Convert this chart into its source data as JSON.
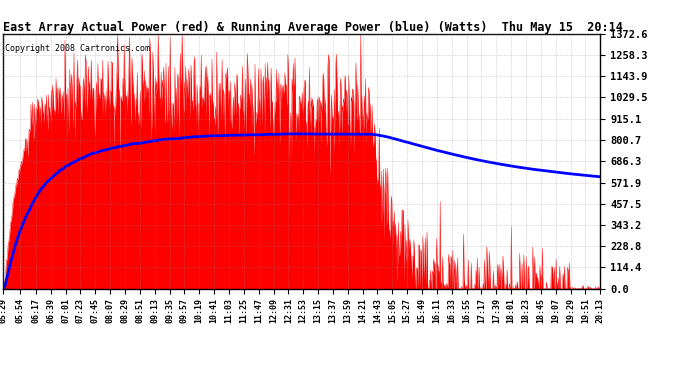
{
  "title": "East Array Actual Power (red) & Running Average Power (blue) (Watts)  Thu May 15  20:14",
  "copyright": "Copyright 2008 Cartronics.com",
  "background_color": "#ffffff",
  "plot_bg_color": "#ffffff",
  "grid_color": "#888888",
  "yticks": [
    0.0,
    114.4,
    228.8,
    343.2,
    457.5,
    571.9,
    686.3,
    800.7,
    915.1,
    1029.5,
    1143.9,
    1258.3,
    1372.6
  ],
  "ymax": 1372.6,
  "ymin": 0.0,
  "x_labels": [
    "05:29",
    "05:54",
    "06:17",
    "06:39",
    "07:01",
    "07:23",
    "07:45",
    "08:07",
    "08:29",
    "08:51",
    "09:13",
    "09:35",
    "09:57",
    "10:19",
    "10:41",
    "11:03",
    "11:25",
    "11:47",
    "12:09",
    "12:31",
    "12:53",
    "13:15",
    "13:37",
    "13:59",
    "14:21",
    "14:43",
    "15:05",
    "15:27",
    "15:49",
    "16:11",
    "16:33",
    "16:55",
    "17:17",
    "17:39",
    "18:01",
    "18:23",
    "18:45",
    "19:07",
    "19:29",
    "19:51",
    "20:13"
  ],
  "actual_color": "#ff0000",
  "avg_color": "#0000ff",
  "fill_color": "#ff0000"
}
